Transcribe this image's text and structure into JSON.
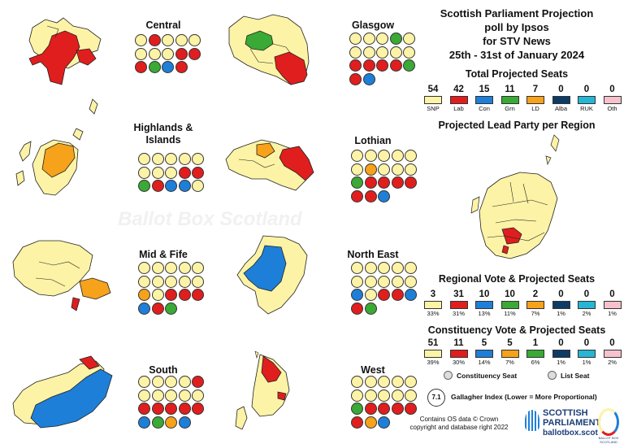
{
  "title": {
    "line1": "Scottish Parliament Projection",
    "line2": "poll by Ipsos",
    "line3": "for STV News",
    "line4": "25th - 31st of January 2024"
  },
  "colors": {
    "SNP": "#fdf3a6",
    "Lab": "#e01e1e",
    "Con": "#1e7fd8",
    "Grn": "#3aa935",
    "LD": "#f6a21b",
    "Alba": "#0d3b66",
    "RUK": "#26b6d4",
    "Oth": "#f6c1cc"
  },
  "total_seats": {
    "heading": "Total Projected Seats",
    "parties": [
      {
        "label": "SNP",
        "value": "54",
        "color": "#fdf3a6"
      },
      {
        "label": "Lab",
        "value": "42",
        "color": "#e01e1e"
      },
      {
        "label": "Con",
        "value": "15",
        "color": "#1e7fd8"
      },
      {
        "label": "Grn",
        "value": "11",
        "color": "#3aa935"
      },
      {
        "label": "LD",
        "value": "7",
        "color": "#f6a21b"
      },
      {
        "label": "Alba",
        "value": "0",
        "color": "#0d3b66"
      },
      {
        "label": "RUK",
        "value": "0",
        "color": "#26b6d4"
      },
      {
        "label": "Oth",
        "value": "0",
        "color": "#f6c1cc"
      }
    ]
  },
  "lead_party_heading": "Projected Lead Party per Region",
  "regional": {
    "heading": "Regional Vote & Projected Seats",
    "parties": [
      {
        "value": "3",
        "pct": "33%",
        "color": "#fdf3a6"
      },
      {
        "value": "31",
        "pct": "31%",
        "color": "#e01e1e"
      },
      {
        "value": "10",
        "pct": "13%",
        "color": "#1e7fd8"
      },
      {
        "value": "10",
        "pct": "11%",
        "color": "#3aa935"
      },
      {
        "value": "2",
        "pct": "7%",
        "color": "#f6a21b"
      },
      {
        "value": "0",
        "pct": "1%",
        "color": "#0d3b66"
      },
      {
        "value": "0",
        "pct": "2%",
        "color": "#26b6d4"
      },
      {
        "value": "0",
        "pct": "1%",
        "color": "#f6c1cc"
      }
    ]
  },
  "constituency": {
    "heading": "Constituency Vote & Projected Seats",
    "parties": [
      {
        "value": "51",
        "pct": "39%",
        "color": "#fdf3a6"
      },
      {
        "value": "11",
        "pct": "30%",
        "color": "#e01e1e"
      },
      {
        "value": "5",
        "pct": "14%",
        "color": "#1e7fd8"
      },
      {
        "value": "5",
        "pct": "7%",
        "color": "#f6a21b"
      },
      {
        "value": "1",
        "pct": "6%",
        "color": "#3aa935"
      },
      {
        "value": "0",
        "pct": "1%",
        "color": "#0d3b66"
      },
      {
        "value": "0",
        "pct": "1%",
        "color": "#26b6d4"
      },
      {
        "value": "0",
        "pct": "2%",
        "color": "#f6c1cc"
      }
    ]
  },
  "legend": {
    "constituency_seat": "Constituency Seat",
    "list_seat": "List Seat",
    "gallagher_value": "7.1",
    "gallagher_label": "Gallagher Index (Lower = More Proportional)"
  },
  "footer": {
    "credit_line1": "Contains OS data © Crown",
    "credit_line2": "copyright and database right 2022",
    "logo_line1": "SCOTTISH",
    "logo_line2": "PARLIAMENT",
    "logo_line3": "ballotbox.scot",
    "logo_ring": "BALLOT BOX SCOTLAND"
  },
  "watermark": "Ballot Box Scotland",
  "regions": [
    {
      "name": "Central",
      "seats": [
        "Y",
        "R",
        "Y",
        "Y",
        "Y",
        "Y",
        "Y",
        "Y",
        "R",
        "R",
        "R",
        "G",
        "B",
        "R"
      ],
      "map_colors": {
        "base": "#fdf3a6",
        "accent": "#e01e1e"
      }
    },
    {
      "name": "Glasgow",
      "seats": [
        "Y",
        "Y",
        "Y",
        "G",
        "Y",
        "Y",
        "Y",
        "Y",
        "Y",
        "Y",
        "R",
        "R",
        "R",
        "R",
        "G",
        "R",
        "B"
      ],
      "map_colors": {
        "base": "#fdf3a6",
        "accent": "#e01e1e"
      }
    },
    {
      "name": "Highlands & Islands",
      "seats": [
        "Y",
        "Y",
        "Y",
        "Y",
        "Y",
        "Y",
        "Y",
        "Y",
        "R",
        "R",
        "G",
        "R",
        "B",
        "B",
        "Y"
      ],
      "map_colors": {
        "base": "#fdf3a6",
        "accent": "#f6a21b"
      }
    },
    {
      "name": "Lothian",
      "seats": [
        "Y",
        "Y",
        "Y",
        "Y",
        "Y",
        "Y",
        "O",
        "Y",
        "Y",
        "Y",
        "G",
        "R",
        "R",
        "R",
        "R",
        "R",
        "R",
        "B"
      ],
      "map_colors": {
        "base": "#fdf3a6",
        "accent": "#e01e1e"
      }
    },
    {
      "name": "Mid & Fife",
      "seats": [
        "Y",
        "Y",
        "Y",
        "Y",
        "Y",
        "Y",
        "Y",
        "Y",
        "Y",
        "Y",
        "O",
        "Y",
        "R",
        "R",
        "R",
        "B",
        "R",
        "G"
      ],
      "map_colors": {
        "base": "#fdf3a6",
        "accent": "#f6a21b"
      }
    },
    {
      "name": "North East",
      "seats": [
        "Y",
        "Y",
        "Y",
        "Y",
        "Y",
        "Y",
        "Y",
        "Y",
        "Y",
        "Y",
        "B",
        "Y",
        "R",
        "R",
        "B",
        "R",
        "G"
      ],
      "map_colors": {
        "base": "#fdf3a6",
        "accent": "#1e7fd8"
      }
    },
    {
      "name": "South",
      "seats": [
        "Y",
        "Y",
        "Y",
        "Y",
        "R",
        "Y",
        "Y",
        "Y",
        "Y",
        "Y",
        "R",
        "R",
        "R",
        "R",
        "R",
        "B",
        "G",
        "O",
        "B"
      ],
      "map_colors": {
        "base": "#fdf3a6",
        "accent": "#1e7fd8"
      }
    },
    {
      "name": "West",
      "seats": [
        "Y",
        "Y",
        "Y",
        "Y",
        "Y",
        "Y",
        "Y",
        "Y",
        "Y",
        "Y",
        "G",
        "R",
        "R",
        "R",
        "R",
        "R",
        "O",
        "B"
      ],
      "map_colors": {
        "base": "#fdf3a6",
        "accent": "#e01e1e"
      }
    }
  ]
}
